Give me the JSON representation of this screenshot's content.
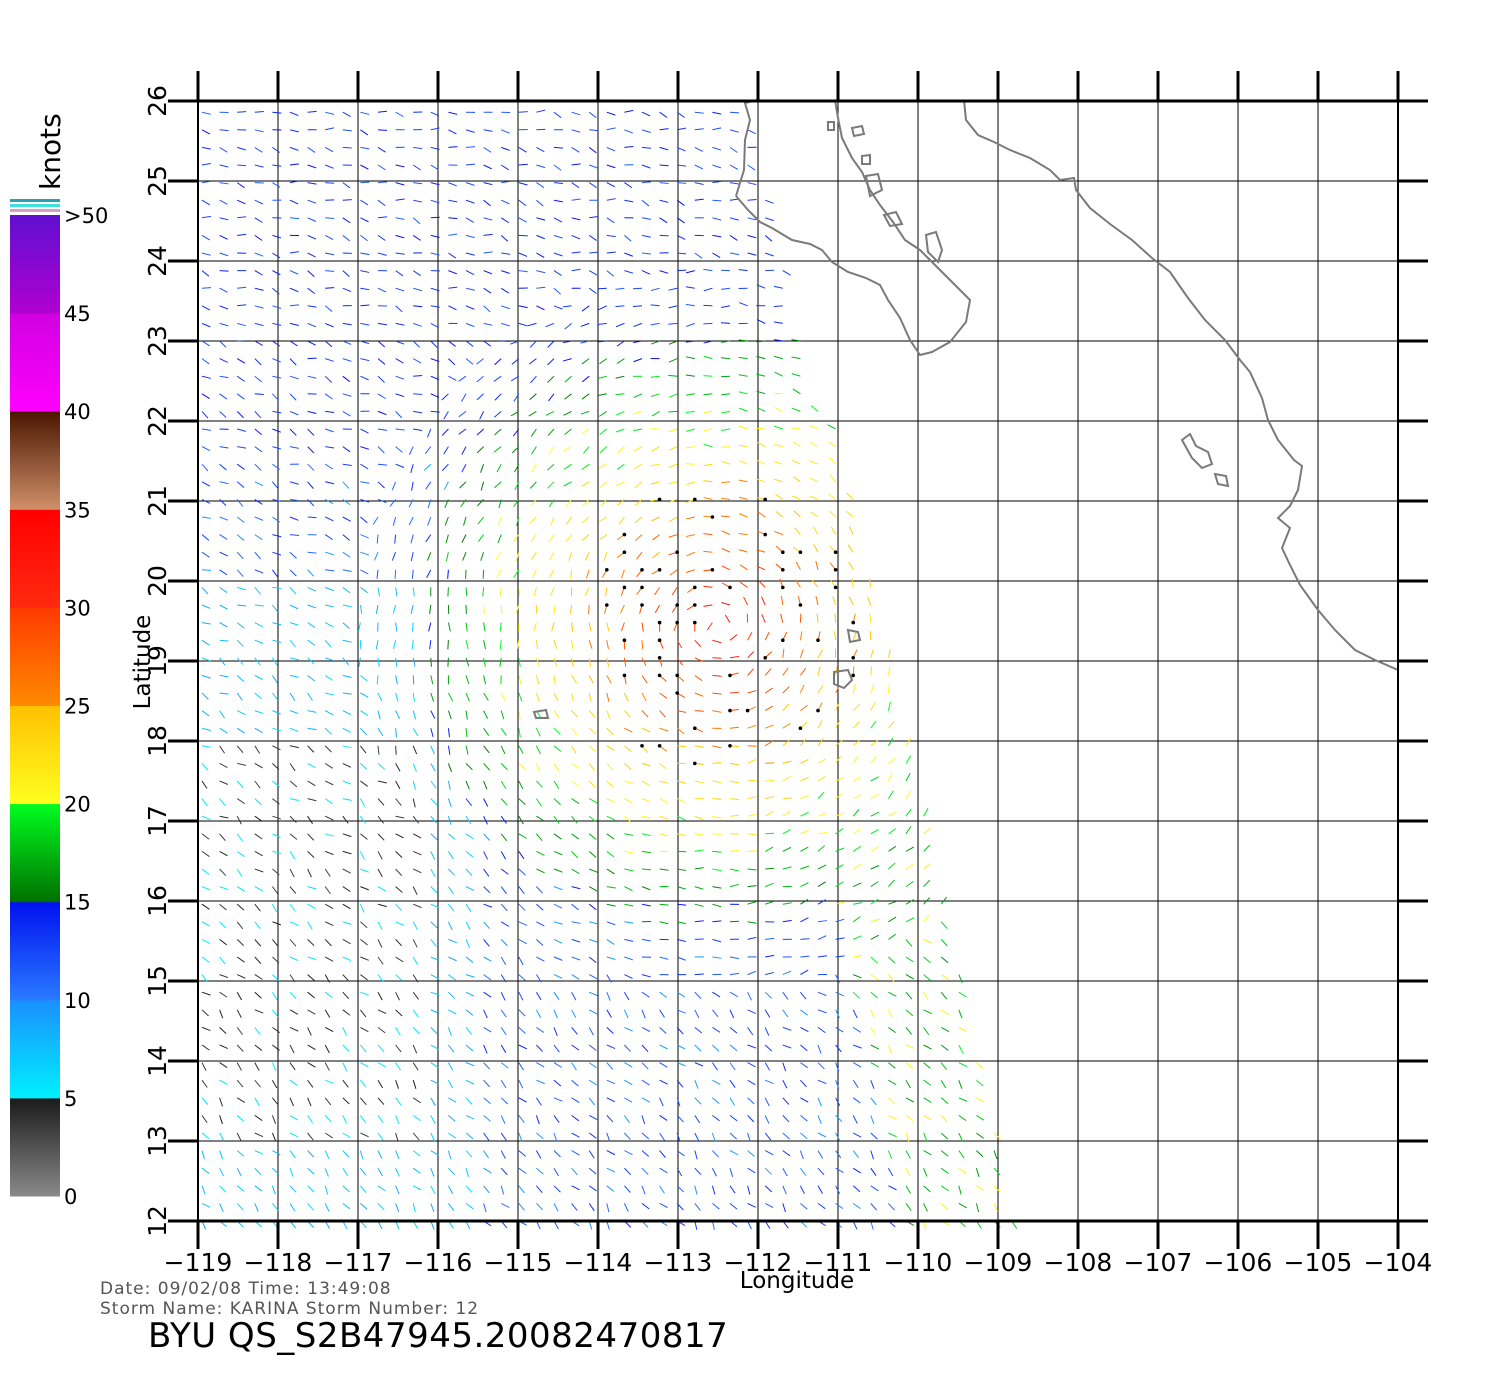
{
  "map": {
    "xlabel": "Longitude",
    "ylabel": "Latitude",
    "lon_ticks": [
      "−119",
      "−118",
      "−117",
      "−116",
      "−115",
      "−114",
      "−113",
      "−112",
      "−111",
      "−110",
      "−109",
      "−108",
      "−107",
      "−106",
      "−105",
      "−104"
    ],
    "lat_ticks": [
      "12",
      "13",
      "14",
      "15",
      "16",
      "17",
      "18",
      "19",
      "20",
      "21",
      "22",
      "23",
      "24",
      "25",
      "26"
    ],
    "lon_range": [
      -119,
      -104
    ],
    "lat_range": [
      12,
      26
    ],
    "grid": true,
    "coastline_color": "#7a7a7a"
  },
  "colorbar": {
    "unit_label": "knots",
    "labels": [
      "0",
      "5",
      "10",
      "15",
      "20",
      "25",
      "30",
      "35",
      "40",
      "45",
      ">50"
    ],
    "segments": [
      {
        "from": 0,
        "to": 5,
        "colors": [
          "#8a8a8a",
          "#1a1a1a"
        ]
      },
      {
        "from": 5,
        "to": 10,
        "colors": [
          "#00f0ff",
          "#1a90ff"
        ]
      },
      {
        "from": 10,
        "to": 15,
        "colors": [
          "#2a7aff",
          "#0010f0"
        ]
      },
      {
        "from": 15,
        "to": 20,
        "colors": [
          "#007000",
          "#00ff20"
        ]
      },
      {
        "from": 20,
        "to": 25,
        "colors": [
          "#ffff20",
          "#ffc000"
        ]
      },
      {
        "from": 25,
        "to": 30,
        "colors": [
          "#ff8a00",
          "#ff3a00"
        ]
      },
      {
        "from": 30,
        "to": 35,
        "colors": [
          "#ff2a10",
          "#ff0000"
        ]
      },
      {
        "from": 35,
        "to": 40,
        "colors": [
          "#d0906a",
          "#4a1500"
        ]
      },
      {
        "from": 40,
        "to": 45,
        "colors": [
          "#ff00ff",
          "#d000e0"
        ]
      },
      {
        "from": 45,
        "to": 50,
        "colors": [
          "#b000d0",
          "#6010d0"
        ]
      }
    ]
  },
  "info": {
    "line1": "Date: 09/02/08   Time: 13:49:08",
    "line2": "Storm  Name: KARINA   Storm  Number: 12",
    "product": "BYU  QS_S2B47945.20082470817"
  }
}
